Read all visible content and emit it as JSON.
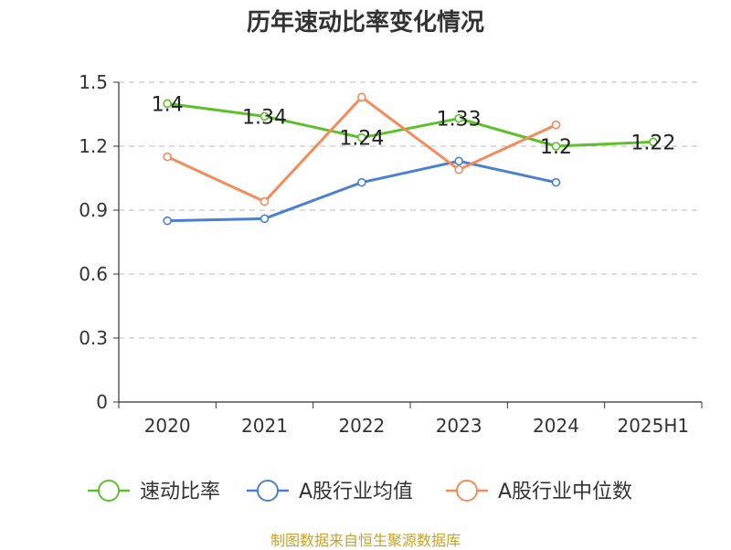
{
  "chart_data": {
    "type": "line",
    "title": "历年速动比率变化情况",
    "categories": [
      "2020",
      "2021",
      "2022",
      "2023",
      "2024",
      "2025H1"
    ],
    "yticks": [
      "0",
      "0.3",
      "0.6",
      "0.9",
      "1.2",
      "1.5"
    ],
    "ylim": [
      0,
      1.5
    ],
    "grid": true,
    "legend_position": "bottom",
    "series": [
      {
        "name": "速动比率",
        "color": "#5cc02a",
        "values": [
          1.4,
          1.34,
          1.24,
          1.33,
          1.2,
          1.22
        ],
        "labels": [
          "1.4",
          "1.34",
          "1.24",
          "1.33",
          "1.2",
          "1.22"
        ]
      },
      {
        "name": "A股行业均值",
        "color": "#4a7fd6",
        "values": [
          0.85,
          0.86,
          1.03,
          1.13,
          1.03,
          null
        ]
      },
      {
        "name": "A股行业中位数",
        "color": "#f58b5a",
        "values": [
          1.15,
          0.94,
          1.43,
          1.09,
          1.3,
          null
        ]
      }
    ]
  },
  "source_note": "制图数据来自恒生聚源数据库"
}
